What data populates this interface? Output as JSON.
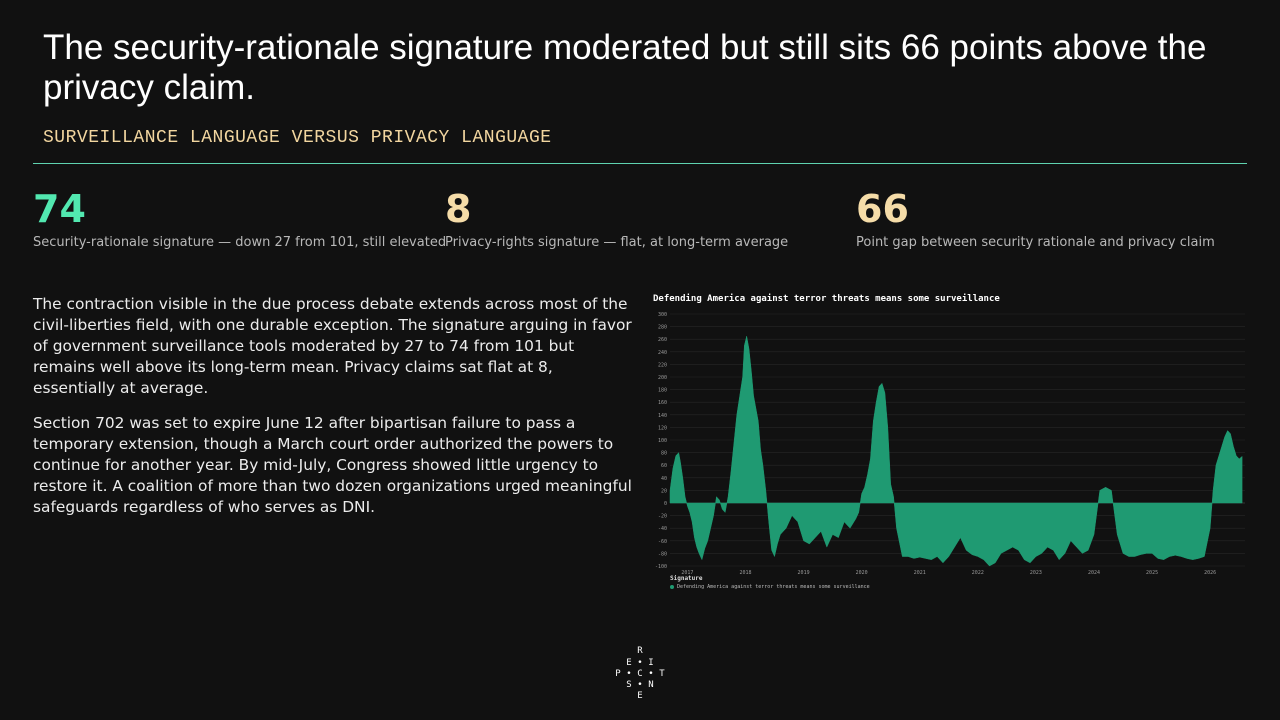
{
  "header": {
    "title": "The security-rationale signature moderated but still sits 66 points above the privacy claim.",
    "subtitle": "SURVEILLANCE LANGUAGE VERSUS PRIVACY LANGUAGE"
  },
  "kpis": [
    {
      "value": "74",
      "label": "Security-rationale signature — down 27 from 101, still elevated",
      "color": "#52e8b0"
    },
    {
      "value": "8",
      "label": "Privacy-rights signature — flat, at long-term average",
      "color": "#f5dca8"
    },
    {
      "value": "66",
      "label": "Point gap between security rationale and privacy claim",
      "color": "#f5dca8"
    }
  ],
  "body": {
    "p1": "The contraction visible in the due process debate extends across most of the civil-liberties field, with one durable exception. The signature arguing in favor of government surveillance tools moderated by 27 to 74 from 101 but remains well above its long-term mean. Privacy claims sat flat at 8, essentially at average.",
    "p2": "Section 702 was set to expire June 12 after bipartisan failure to pass a temporary extension, though a March court order authorized the powers to continue for another year. By mid-July, Congress showed little urgency to restore it. A coalition of more than two dozen organizations urged meaningful safeguards regardless of who serves as DNI."
  },
  "chart_data": {
    "type": "area",
    "title": "Defending America against terror threats means some surveillance",
    "legend_title": "Signature",
    "legend_position": "bottom-left",
    "grid": true,
    "ylim": [
      -100,
      300
    ],
    "yticks": [
      300,
      280,
      260,
      240,
      220,
      200,
      180,
      160,
      140,
      120,
      100,
      80,
      60,
      40,
      20,
      0,
      -20,
      -40,
      -60,
      -80,
      -100
    ],
    "xlim": [
      2016.7,
      2026.6
    ],
    "xticks": [
      "2017",
      "2018",
      "2019",
      "2020",
      "2021",
      "2022",
      "2023",
      "2024",
      "2025",
      "2026"
    ],
    "fill_color": "#1f9a72",
    "series": [
      {
        "name": "Defending America against terror threats means some surveillance",
        "x": [
          2016.7,
          2016.75,
          2016.8,
          2016.85,
          2016.88,
          2016.92,
          2016.96,
          2017.0,
          2017.04,
          2017.08,
          2017.12,
          2017.16,
          2017.2,
          2017.25,
          2017.3,
          2017.35,
          2017.4,
          2017.45,
          2017.5,
          2017.55,
          2017.6,
          2017.65,
          2017.7,
          2017.75,
          2017.8,
          2017.85,
          2017.9,
          2017.95,
          2017.98,
          2018.02,
          2018.06,
          2018.1,
          2018.14,
          2018.18,
          2018.22,
          2018.26,
          2018.3,
          2018.35,
          2018.4,
          2018.45,
          2018.5,
          2018.55,
          2018.6,
          2018.7,
          2018.8,
          2018.9,
          2019.0,
          2019.1,
          2019.2,
          2019.3,
          2019.4,
          2019.5,
          2019.6,
          2019.7,
          2019.8,
          2019.9,
          2019.95,
          2020.0,
          2020.05,
          2020.1,
          2020.15,
          2020.2,
          2020.25,
          2020.3,
          2020.35,
          2020.4,
          2020.45,
          2020.5,
          2020.55,
          2020.6,
          2020.7,
          2020.8,
          2020.9,
          2021.0,
          2021.1,
          2021.2,
          2021.3,
          2021.4,
          2021.5,
          2021.6,
          2021.7,
          2021.8,
          2021.9,
          2022.0,
          2022.1,
          2022.2,
          2022.3,
          2022.4,
          2022.5,
          2022.6,
          2022.7,
          2022.8,
          2022.9,
          2023.0,
          2023.1,
          2023.2,
          2023.3,
          2023.4,
          2023.5,
          2023.6,
          2023.7,
          2023.8,
          2023.9,
          2024.0,
          2024.1,
          2024.2,
          2024.3,
          2024.4,
          2024.5,
          2024.6,
          2024.7,
          2024.8,
          2024.9,
          2025.0,
          2025.1,
          2025.2,
          2025.3,
          2025.4,
          2025.5,
          2025.6,
          2025.7,
          2025.8,
          2025.9,
          2026.0,
          2026.05,
          2026.1,
          2026.15,
          2026.2,
          2026.25,
          2026.3,
          2026.35,
          2026.4,
          2026.45,
          2026.5,
          2026.55
        ],
        "values": [
          20,
          55,
          75,
          80,
          65,
          40,
          10,
          -5,
          -15,
          -30,
          -55,
          -70,
          -80,
          -90,
          -72,
          -60,
          -40,
          -20,
          10,
          5,
          -10,
          -15,
          10,
          50,
          95,
          140,
          170,
          200,
          250,
          265,
          245,
          210,
          170,
          150,
          130,
          85,
          60,
          20,
          -30,
          -75,
          -85,
          -65,
          -50,
          -40,
          -20,
          -30,
          -60,
          -65,
          -55,
          -45,
          -70,
          -50,
          -55,
          -30,
          -40,
          -25,
          -15,
          15,
          25,
          45,
          70,
          130,
          160,
          185,
          190,
          175,
          120,
          30,
          10,
          -40,
          -85,
          -85,
          -88,
          -86,
          -88,
          -90,
          -85,
          -95,
          -85,
          -70,
          -55,
          -75,
          -82,
          -85,
          -90,
          -100,
          -95,
          -80,
          -75,
          -70,
          -75,
          -90,
          -95,
          -85,
          -80,
          -70,
          -75,
          -90,
          -80,
          -60,
          -70,
          -80,
          -75,
          -50,
          20,
          25,
          20,
          -50,
          -80,
          -85,
          -85,
          -82,
          -80,
          -80,
          -88,
          -90,
          -85,
          -83,
          -85,
          -88,
          -90,
          -88,
          -85,
          -40,
          20,
          60,
          75,
          90,
          105,
          115,
          110,
          90,
          75,
          70,
          74
        ]
      }
    ]
  },
  "logo": {
    "letters": [
      "R",
      "E",
      "•",
      "I",
      "P",
      "•",
      "C",
      "•",
      "T",
      "S",
      "•",
      "N",
      "E"
    ]
  }
}
